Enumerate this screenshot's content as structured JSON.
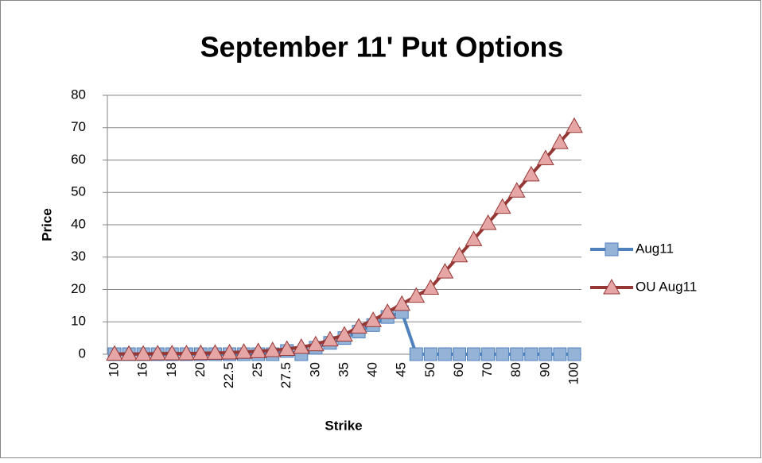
{
  "chart_data": {
    "type": "line",
    "title": "September 11' Put Options",
    "x_label": "Strike",
    "y_label": "Price",
    "categories": [
      "10",
      null,
      "16",
      null,
      "18",
      null,
      "20",
      null,
      "22.5",
      null,
      "25",
      null,
      "27.5",
      null,
      "30",
      null,
      "35",
      null,
      "40",
      null,
      "45",
      null,
      "50",
      null,
      "60",
      null,
      "70",
      null,
      "80",
      null,
      "90",
      null,
      "100"
    ],
    "series": [
      {
        "name": "Aug11",
        "color": "#4f81bd",
        "marker": "square",
        "marker_fill": "#95b3d7",
        "values": [
          0,
          0,
          0,
          0,
          0,
          0,
          0,
          0,
          0,
          0,
          0,
          0,
          1,
          0,
          2,
          3.5,
          5,
          7,
          9,
          11.5,
          13,
          0,
          0,
          0,
          0,
          0,
          0,
          0,
          0,
          0,
          0,
          0,
          0
        ]
      },
      {
        "name": "OU Aug11",
        "color": "#953735",
        "marker": "triangle",
        "marker_fill": "#e6a6a6",
        "values": [
          0.1,
          0.1,
          0.1,
          0.2,
          0.2,
          0.2,
          0.3,
          0.4,
          0.5,
          0.7,
          0.9,
          1.2,
          1.6,
          2.2,
          3,
          4.5,
          6,
          8.5,
          10.5,
          13,
          15.5,
          18,
          20.5,
          25.5,
          30.5,
          35.5,
          40.5,
          45.5,
          50.5,
          55.5,
          60.5,
          65.5,
          70.5
        ]
      }
    ],
    "ylim": [
      0,
      80
    ],
    "yticks": [
      0,
      10,
      20,
      30,
      40,
      50,
      60,
      70,
      80
    ],
    "grid": true,
    "legend": "right"
  }
}
